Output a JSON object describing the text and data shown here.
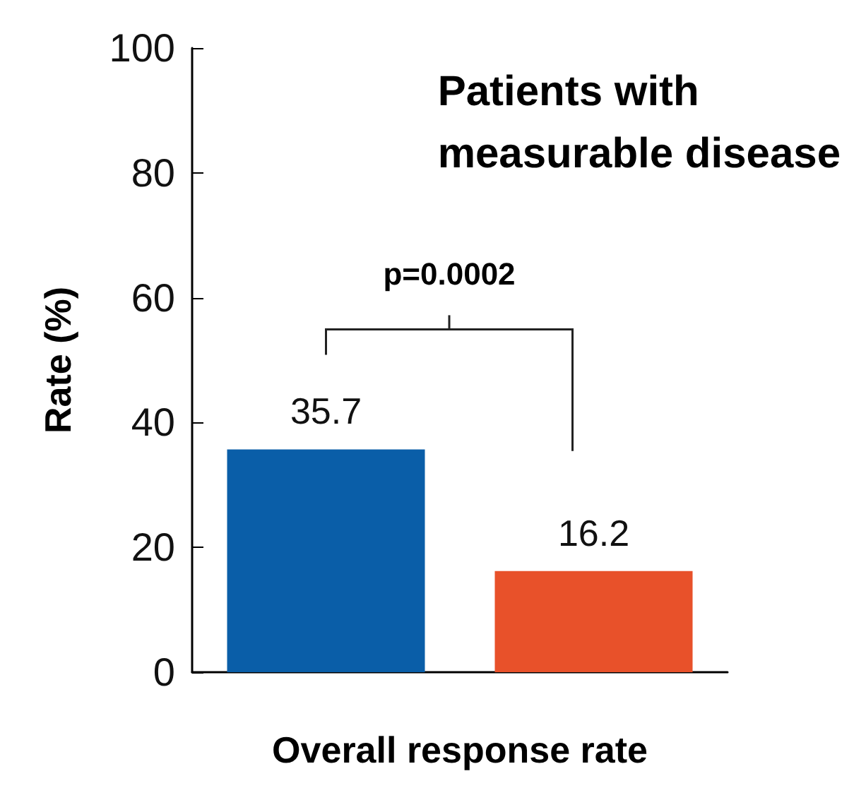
{
  "chart_data": {
    "type": "bar",
    "title": "Patients with\nmeasurable disease",
    "xlabel": "Overall response rate",
    "ylabel": "Rate (%)",
    "categories": [
      null,
      null
    ],
    "values": [
      35.7,
      16.2
    ],
    "colors": [
      "#0a5ea8",
      "#e8512a"
    ],
    "ylim": [
      0,
      100
    ],
    "yticks": [
      0,
      20,
      40,
      60,
      80,
      100
    ],
    "grid": false,
    "data_labels": true,
    "annotations": [
      "p=0.0002"
    ]
  }
}
